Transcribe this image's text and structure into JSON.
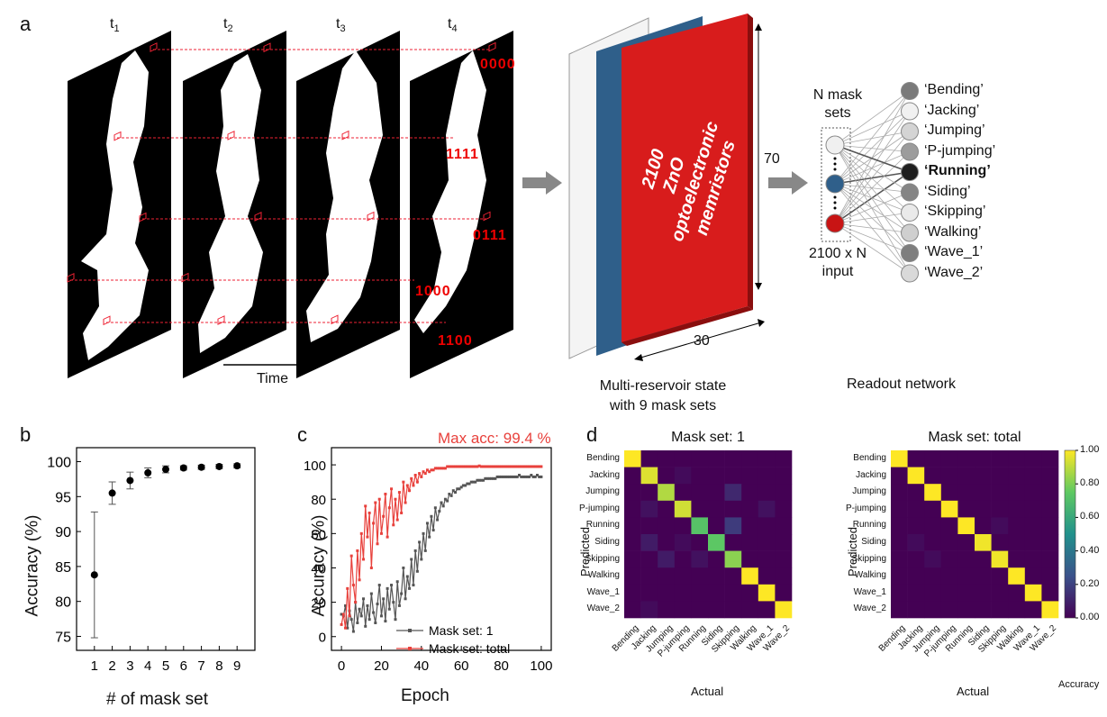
{
  "panel_a": {
    "label": "a",
    "frames": [
      "t",
      "t",
      "t",
      "t"
    ],
    "frame_subs": [
      "1",
      "2",
      "3",
      "4"
    ],
    "bit_codes": [
      "0000",
      "1111",
      "0111",
      "1000",
      "1100"
    ],
    "time_label": "Time",
    "memristor_text": [
      "2100",
      "ZnO",
      "optoelectronic",
      "memristors"
    ],
    "dim_height": "70",
    "dim_width": "30",
    "reservoir_caption": [
      "Multi-reservoir state",
      "with 9 mask sets"
    ],
    "mask_sets_label": [
      "N mask",
      "sets"
    ],
    "input_label": [
      "2100 x N",
      "input"
    ],
    "readout_caption": "Readout network",
    "classes": [
      "‘Bending’",
      "‘Jacking’",
      "‘Jumping’",
      "‘P-jumping’",
      "‘Running’",
      "‘Siding’",
      "‘Skipping’",
      "‘Walking’",
      "‘Wave_1’",
      "‘Wave_2’"
    ],
    "highlight_class_index": 4,
    "class_node_colors": [
      "#7a7a7a",
      "#f1f1f1",
      "#d4d4d4",
      "#9c9c9c",
      "#1e1e1e",
      "#858585",
      "#eaeaea",
      "#cfcfcf",
      "#7e7e7e",
      "#d9d9d9"
    ],
    "input_node_colors": [
      "#f0f0f0",
      "#2f5f8a",
      "#c81414"
    ]
  },
  "panel_b": {
    "label": "b",
    "xlabel": "# of mask set",
    "ylabel": "Accuracy (%)",
    "chart_data": {
      "type": "scatter",
      "x": [
        1,
        2,
        3,
        4,
        5,
        6,
        7,
        8,
        9
      ],
      "y": [
        83.8,
        95.5,
        97.3,
        98.4,
        98.9,
        99.1,
        99.2,
        99.3,
        99.4
      ],
      "err": [
        9.0,
        1.6,
        1.2,
        0.7,
        0.5,
        0.3,
        0.3,
        0.3,
        0.3
      ],
      "xticks": [
        "1",
        "2",
        "3",
        "4",
        "5",
        "6",
        "7",
        "8",
        "9"
      ],
      "yticks": [
        "75",
        "80",
        "85",
        "90",
        "95",
        "100"
      ],
      "ylim": [
        73,
        102
      ],
      "xlim": [
        0,
        10
      ]
    }
  },
  "panel_c": {
    "label": "c",
    "xlabel": "Epoch",
    "ylabel": "Accuracy (%)",
    "annotation": "Max acc: 99.4 %",
    "legend": [
      "Mask set: 1",
      "Mask set: total"
    ],
    "colors": {
      "mask1": "#555555",
      "total": "#e8413c"
    },
    "chart_data": {
      "type": "line",
      "xticks": [
        "0",
        "20",
        "40",
        "60",
        "80",
        "100"
      ],
      "yticks": [
        "0",
        "20",
        "40",
        "60",
        "80",
        "100"
      ],
      "xlim": [
        -5,
        105
      ],
      "ylim": [
        -8,
        110
      ],
      "series": [
        {
          "name": "Mask set: 1",
          "values": [
            13,
            12,
            18,
            5,
            15,
            10,
            3,
            20,
            8,
            16,
            12,
            22,
            6,
            18,
            10,
            25,
            14,
            8,
            19,
            30,
            12,
            22,
            9,
            28,
            16,
            30,
            20,
            10,
            32,
            18,
            25,
            40,
            22,
            35,
            28,
            45,
            30,
            50,
            38,
            55,
            45,
            60,
            50,
            66,
            58,
            70,
            62,
            75,
            68,
            73,
            78,
            76,
            80,
            79,
            83,
            82,
            85,
            84,
            86,
            86,
            87,
            88,
            88,
            89,
            89,
            90,
            90,
            90,
            91,
            91,
            91,
            91,
            92,
            92,
            92,
            92,
            92,
            92,
            93,
            93,
            93,
            93,
            93,
            93,
            93,
            93,
            93,
            93,
            93,
            94,
            93,
            93,
            93,
            93,
            93,
            94,
            93,
            93,
            94,
            93,
            93
          ]
        },
        {
          "name": "Mask set: total",
          "values": [
            7,
            13,
            5,
            28,
            12,
            47,
            30,
            20,
            50,
            33,
            60,
            45,
            76,
            58,
            72,
            40,
            66,
            78,
            54,
            80,
            60,
            70,
            83,
            58,
            75,
            86,
            65,
            80,
            68,
            84,
            72,
            90,
            78,
            88,
            85,
            92,
            88,
            94,
            90,
            95,
            93,
            96,
            95,
            97,
            96,
            97,
            97,
            98,
            98,
            98,
            98,
            98,
            98,
            99,
            99,
            99,
            99,
            99,
            99,
            99,
            99,
            99,
            99,
            99,
            99,
            99,
            99,
            99,
            99,
            99.4,
            99,
            99,
            99,
            99,
            99,
            99,
            99,
            99,
            99,
            99,
            99,
            99,
            99,
            99,
            99,
            99,
            99,
            99,
            99,
            99,
            99,
            99,
            99,
            99,
            99,
            99,
            99,
            99,
            99,
            99,
            99
          ]
        }
      ]
    }
  },
  "panel_d": {
    "label": "d",
    "xlabel": "Actual",
    "ylabel": "Predicted",
    "titles": [
      "Mask set: 1",
      "Mask set: total"
    ],
    "categories": [
      "Bending",
      "Jacking",
      "Jumping",
      "P-jumping",
      "Running",
      "Siding",
      "Skipping",
      "Walking",
      "Wave_1",
      "Wave_2"
    ],
    "colorbar_label": "Accuracy",
    "colorbar_ticks": [
      "1.00",
      "0.80",
      "0.60",
      "0.40",
      "0.20",
      "0.00"
    ],
    "chart_data": [
      {
        "type": "heatmap",
        "title": "Mask set: 1",
        "values": [
          [
            1.0,
            0,
            0,
            0,
            0,
            0,
            0,
            0,
            0,
            0
          ],
          [
            0,
            0.95,
            0,
            0.03,
            0,
            0,
            0,
            0,
            0,
            0
          ],
          [
            0,
            0,
            0.88,
            0,
            0,
            0,
            0.12,
            0,
            0,
            0
          ],
          [
            0,
            0.05,
            0,
            0.93,
            0,
            0,
            0,
            0,
            0.05,
            0
          ],
          [
            0,
            0,
            0,
            0,
            0.72,
            0,
            0.18,
            0,
            0,
            0
          ],
          [
            0,
            0.08,
            0,
            0.03,
            0,
            0.74,
            0,
            0,
            0,
            0
          ],
          [
            0,
            0,
            0.08,
            0,
            0.05,
            0,
            0.82,
            0,
            0,
            0
          ],
          [
            0,
            0,
            0,
            0,
            0,
            0,
            0,
            1.0,
            0,
            0
          ],
          [
            0,
            0,
            0,
            0,
            0,
            0,
            0,
            0,
            1.0,
            0
          ],
          [
            0,
            0.03,
            0,
            0,
            0,
            0,
            0,
            0,
            0,
            1.0
          ]
        ]
      },
      {
        "type": "heatmap",
        "title": "Mask set: total",
        "values": [
          [
            1.0,
            0,
            0,
            0,
            0,
            0,
            0,
            0,
            0,
            0
          ],
          [
            0,
            1.0,
            0,
            0,
            0,
            0,
            0,
            0,
            0,
            0
          ],
          [
            0,
            0,
            1.0,
            0,
            0,
            0,
            0,
            0,
            0,
            0
          ],
          [
            0,
            0,
            0,
            1.0,
            0,
            0,
            0,
            0,
            0,
            0
          ],
          [
            0,
            0,
            0,
            0,
            1.0,
            0,
            0.03,
            0,
            0,
            0
          ],
          [
            0,
            0.03,
            0,
            0,
            0,
            0.98,
            0,
            0,
            0,
            0
          ],
          [
            0,
            0,
            0.03,
            0,
            0,
            0,
            0.98,
            0,
            0,
            0
          ],
          [
            0,
            0,
            0,
            0,
            0,
            0,
            0,
            1.0,
            0,
            0
          ],
          [
            0,
            0,
            0,
            0,
            0,
            0,
            0,
            0,
            1.0,
            0
          ],
          [
            0,
            0,
            0,
            0,
            0,
            0,
            0,
            0,
            0,
            1.0
          ]
        ]
      }
    ]
  }
}
